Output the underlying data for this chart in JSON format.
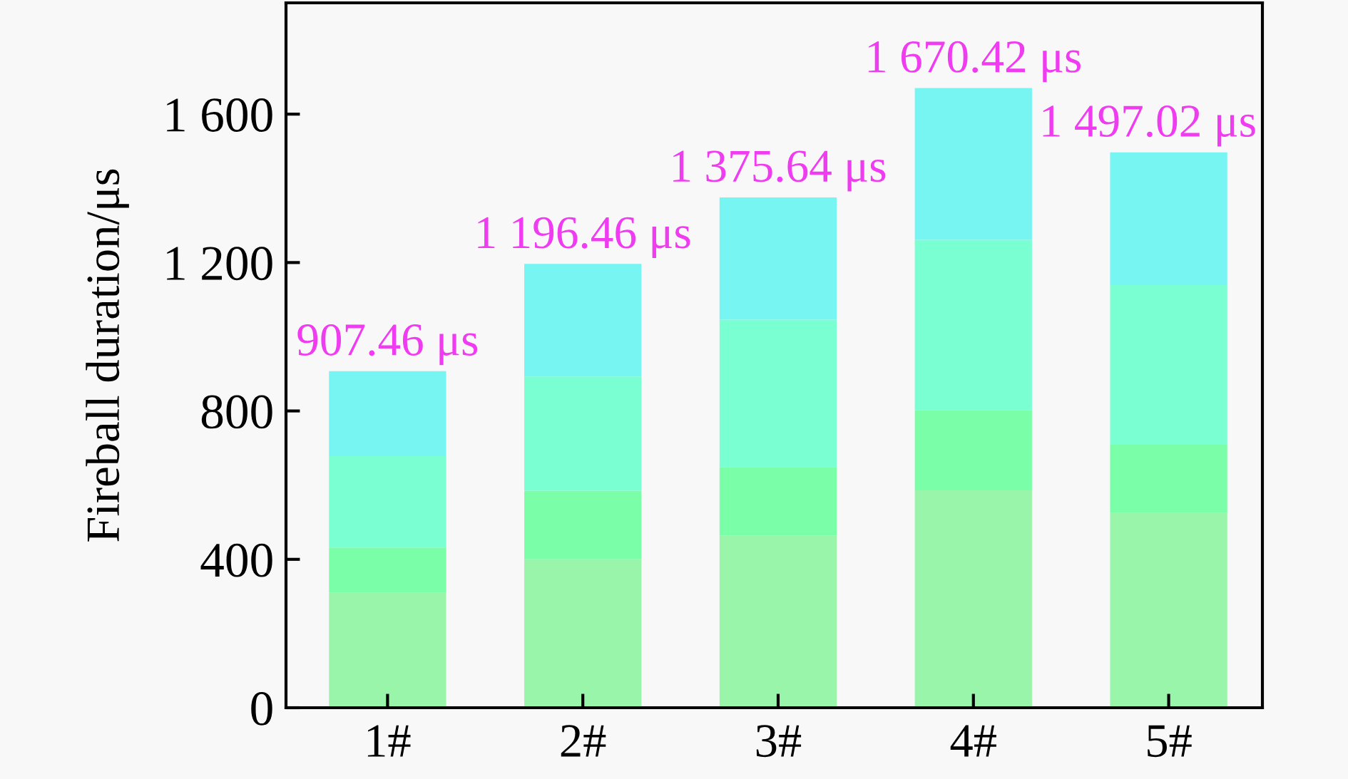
{
  "chart_data": {
    "type": "bar",
    "stacked": true,
    "ylabel": "Fireball duration/μs",
    "categories": [
      "1#",
      "2#",
      "3#",
      "4#",
      "5#"
    ],
    "series": [
      {
        "color": "#98f5aa",
        "values": [
          310,
          400,
          464,
          586,
          525
        ]
      },
      {
        "color": "#7affa8",
        "values": [
          122,
          185,
          184,
          216,
          184
        ]
      },
      {
        "color": "#7affd2",
        "values": [
          246,
          308,
          398,
          459,
          430
        ]
      },
      {
        "color": "#76f5f3",
        "values": [
          229.46,
          303.46,
          329.64,
          409.42,
          358.02
        ]
      }
    ],
    "totals": [
      "907.46 μs",
      "1 196.46 μs",
      "1 375.64 μs",
      "1 670.42 μs",
      "1 497.02 μs"
    ],
    "ylim": [
      0,
      1900
    ],
    "yticks": [
      0,
      400,
      800,
      {
        "value": 1200,
        "label": "1 200"
      },
      {
        "value": 1600,
        "label": "1 600"
      }
    ],
    "grid": false
  }
}
